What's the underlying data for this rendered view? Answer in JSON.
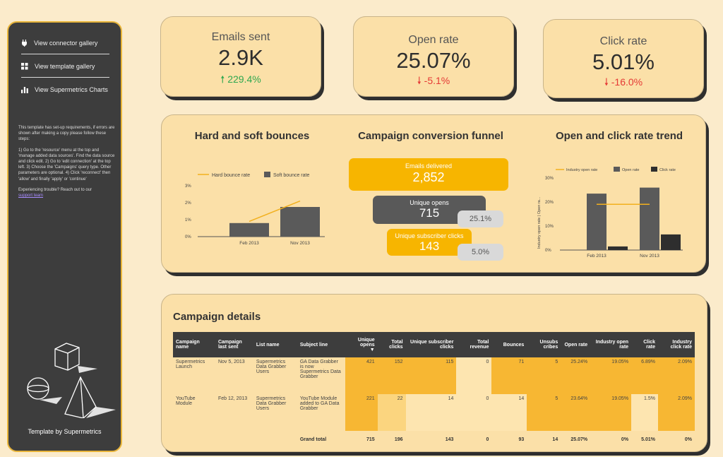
{
  "sidebar": {
    "items": [
      {
        "label": "View connector gallery",
        "icon": "plug-icon"
      },
      {
        "label": "View template gallery",
        "icon": "grid-icon"
      },
      {
        "label": "View Supermetrics Charts",
        "icon": "bar-chart-icon"
      }
    ],
    "instructions": [
      "This template has set-up requirements, if errors are shown after making a copy please follow these steps:",
      "1) Go to the 'resource' menu at the top and 'manage added data sources'. Find the data source and click edit. 2) Go to 'edit connection' at the top left. 3) Choose the 'Campaigns' query type. Other parameters are optional. 4) Click 'reconnect' then 'allow' and finally 'apply' or 'continue'",
      "Experiencing trouble? Reach out to our"
    ],
    "support_link": "support team",
    "byline": "Template by Supermetrics"
  },
  "kpis": [
    {
      "label": "Emails sent",
      "value": "2.9K",
      "delta": "229.4%",
      "direction": "up"
    },
    {
      "label": "Open rate",
      "value": "25.07%",
      "delta": "-5.1%",
      "direction": "down"
    },
    {
      "label": "Click rate",
      "value": "5.01%",
      "delta": "-16.0%",
      "direction": "down"
    }
  ],
  "bounces": {
    "title": "Hard and soft bounces",
    "legend": [
      "Hard bounce rate",
      "Soft bounce rate"
    ],
    "chart_data": {
      "type": "bar",
      "categories": [
        "Feb 2013",
        "Nov 2013"
      ],
      "series": [
        {
          "name": "Soft bounce rate",
          "type": "bar",
          "values": [
            0.8,
            1.75
          ]
        },
        {
          "name": "Hard bounce rate",
          "type": "line",
          "values": [
            0.9,
            2.1
          ]
        }
      ],
      "yticks": [
        "3%",
        "2%",
        "1%",
        "0%"
      ],
      "ylim": [
        0,
        3
      ],
      "colors": {
        "bar": "#5a5a5a",
        "line": "#f2b01e"
      }
    }
  },
  "funnel": {
    "title": "Campaign conversion funnel",
    "steps": [
      {
        "label": "Emails delivered",
        "value": "2,852"
      },
      {
        "label": "Unique opens",
        "value": "715",
        "rate": "25.1%"
      },
      {
        "label": "Unique subscriber clicks",
        "value": "143",
        "rate": "5.0%"
      }
    ]
  },
  "trend": {
    "title": "Open and click rate trend",
    "legend": [
      "Industry open rate",
      "Open rate",
      "Click rate"
    ],
    "ylabel": "Industry open rate | Open ra...",
    "chart_data": {
      "type": "bar",
      "categories": [
        "Feb 2013",
        "Nov 2013"
      ],
      "series": [
        {
          "name": "Open rate",
          "type": "bar",
          "values": [
            23.5,
            26.0
          ]
        },
        {
          "name": "Click rate",
          "type": "bar",
          "values": [
            1.5,
            6.5
          ]
        },
        {
          "name": "Industry open rate",
          "type": "line",
          "values": [
            19.05,
            19.05
          ]
        }
      ],
      "yticks": [
        "30%",
        "20%",
        "10%",
        "0%"
      ],
      "ylim": [
        0,
        30
      ],
      "colors": {
        "open": "#5a5a5a",
        "click": "#2e2e2e",
        "industry": "#f2b01e"
      }
    }
  },
  "details": {
    "title": "Campaign details",
    "columns": [
      "Campaign name",
      "Campaign last sent",
      "List name",
      "Subject line",
      "Unique opens",
      "Total clicks",
      "Unique subscriber clicks",
      "Total revenue",
      "Bounces",
      "Unsubs cribes",
      "Open rate",
      "Industry open rate",
      "Click rate",
      "Industry click rate"
    ],
    "sort_indicator": "▼",
    "rows": [
      [
        "Supermetrics Launch",
        "Nov 5, 2013",
        "Supermetrics Data Grabber Users",
        "GA Data Grabber is now Supermetrics Data Grabber",
        "421",
        "152",
        "115",
        "0",
        "71",
        "5",
        "25.24%",
        "19.05%",
        "6.89%",
        "2.09%"
      ],
      [
        "YouTube Module",
        "Feb 12, 2013",
        "Supermetrics Data Grabber Users",
        "YouTube Module added to GA Data Grabber",
        "221",
        "22",
        "14",
        "0",
        "14",
        "5",
        "23.64%",
        "19.05%",
        "1.5%",
        "2.09%"
      ]
    ],
    "total": [
      "",
      "",
      "",
      "Grand total",
      "715",
      "196",
      "143",
      "0",
      "93",
      "14",
      "25.07%",
      "0%",
      "5.01%",
      "0%"
    ]
  }
}
